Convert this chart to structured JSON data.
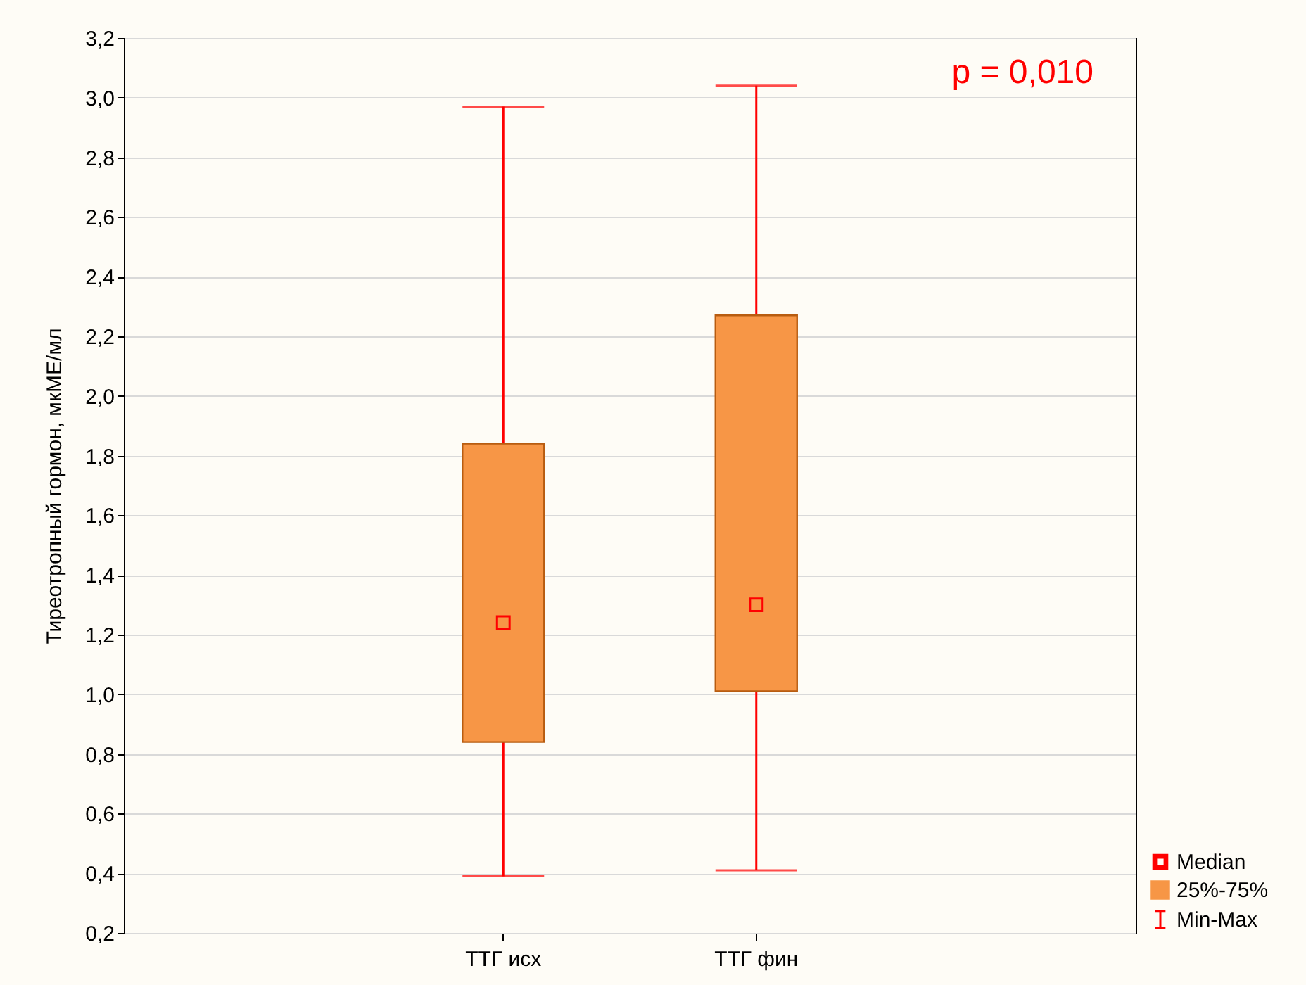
{
  "chart_data": {
    "type": "box",
    "ylabel": "Тиреотропный гормон, мкМЕ/мл",
    "categories": [
      "ТТГ исх",
      "ТТГ фин"
    ],
    "series": [
      {
        "name": "25%-75%",
        "color": "#f79646",
        "boxes": [
          {
            "low": 0.39,
            "q1": 0.84,
            "median": 1.24,
            "q3": 1.84,
            "high": 2.97
          },
          {
            "low": 0.41,
            "q1": 1.01,
            "median": 1.3,
            "q3": 2.27,
            "high": 3.04
          }
        ]
      }
    ],
    "ylim": [
      0.2,
      3.2
    ],
    "yticks": [
      {
        "value": 0.2,
        "label": "0,2"
      },
      {
        "value": 0.4,
        "label": "0,4"
      },
      {
        "value": 0.6,
        "label": "0,6"
      },
      {
        "value": 0.8,
        "label": "0,8"
      },
      {
        "value": 1.0,
        "label": "1,0"
      },
      {
        "value": 1.2,
        "label": "1,2"
      },
      {
        "value": 1.4,
        "label": "1,4"
      },
      {
        "value": 1.6,
        "label": "1,6"
      },
      {
        "value": 1.8,
        "label": "1,8"
      },
      {
        "value": 2.0,
        "label": "2,0"
      },
      {
        "value": 2.2,
        "label": "2,2"
      },
      {
        "value": 2.4,
        "label": "2,4"
      },
      {
        "value": 2.6,
        "label": "2,6"
      },
      {
        "value": 2.8,
        "label": "2,8"
      },
      {
        "value": 3.0,
        "label": "3,0"
      },
      {
        "value": 3.2,
        "label": "3,2"
      }
    ],
    "grid": "y",
    "legend": "bottom right",
    "annotations": [
      "p = 0,010",
      "Median",
      "Min-Max"
    ]
  }
}
